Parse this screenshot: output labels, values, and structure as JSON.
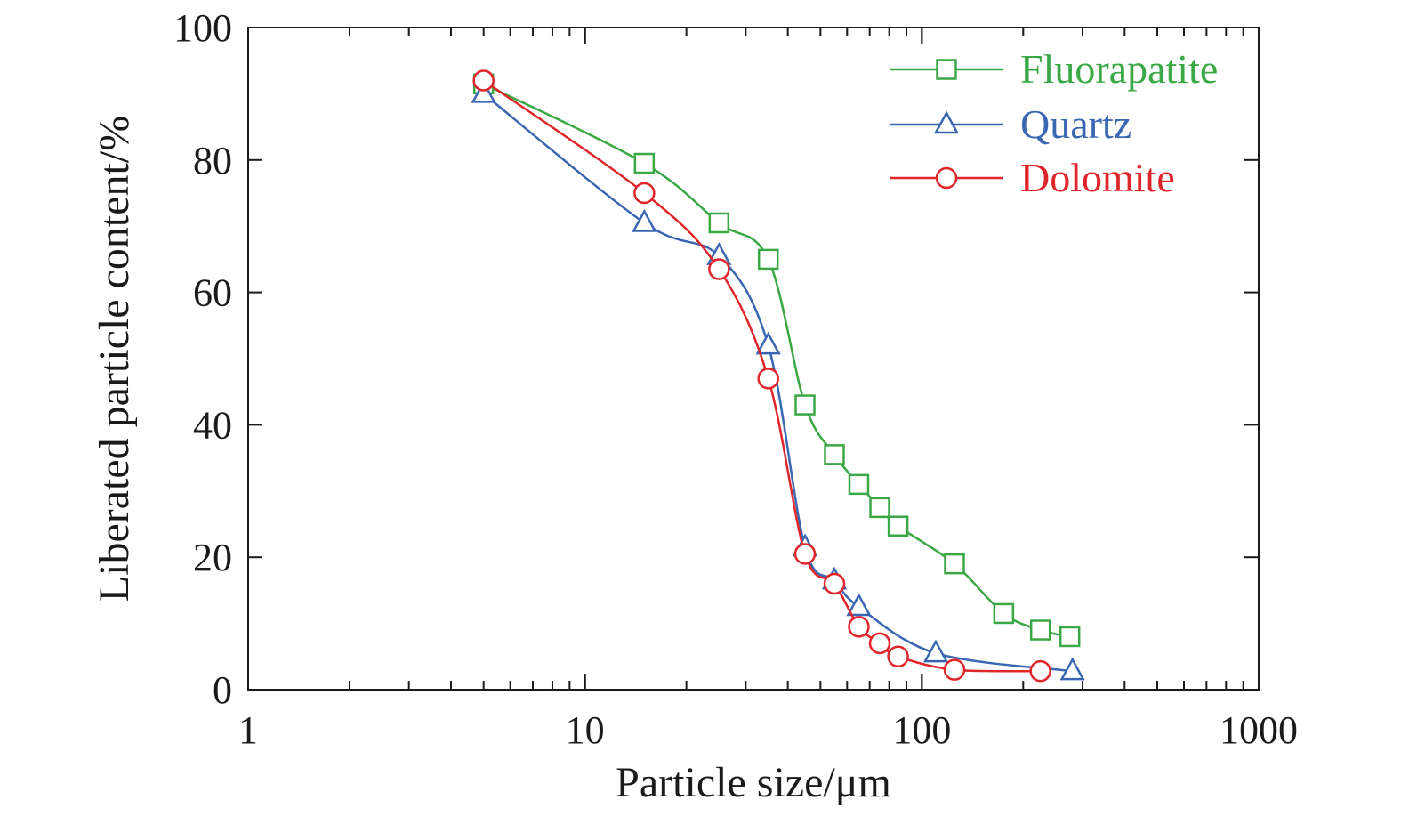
{
  "chart_data": {
    "type": "line",
    "title": "",
    "xlabel": "Particle size/μm",
    "ylabel": "Liberated particle content/%",
    "xscale": "log",
    "xlim": [
      1,
      1000
    ],
    "ylim": [
      0,
      100
    ],
    "xticks": [
      1,
      10,
      100,
      1000
    ],
    "xtick_labels": [
      "1",
      "10",
      "100",
      "1000"
    ],
    "yticks": [
      0,
      20,
      40,
      60,
      80,
      100
    ],
    "ytick_labels": [
      "0",
      "20",
      "40",
      "60",
      "80",
      "100"
    ],
    "grid": false,
    "legend_position": "top-right",
    "series": [
      {
        "name": "Fluorapatite",
        "color": "#3aa845",
        "marker": "square",
        "x": [
          5,
          15,
          25,
          35,
          45,
          55,
          65,
          75,
          85,
          125,
          175,
          225,
          275
        ],
        "y": [
          91.5,
          79.5,
          70.5,
          65,
          43,
          35.5,
          31,
          27.5,
          24.7,
          19,
          11.5,
          9,
          8
        ]
      },
      {
        "name": "Quartz",
        "color": "#3a67b1",
        "marker": "triangle",
        "x": [
          5,
          15,
          25,
          35,
          45,
          55,
          65,
          110,
          280
        ],
        "y": [
          90,
          70.5,
          65.5,
          52,
          21.5,
          16.5,
          12.5,
          5.5,
          2.8
        ]
      },
      {
        "name": "Dolomite",
        "color": "#e0262b",
        "marker": "circle",
        "x": [
          5,
          15,
          25,
          35,
          45,
          55,
          65,
          75,
          85,
          125,
          225
        ],
        "y": [
          92,
          75,
          63.5,
          47,
          20.5,
          16,
          9.5,
          7,
          5,
          3,
          2.8
        ]
      }
    ]
  }
}
